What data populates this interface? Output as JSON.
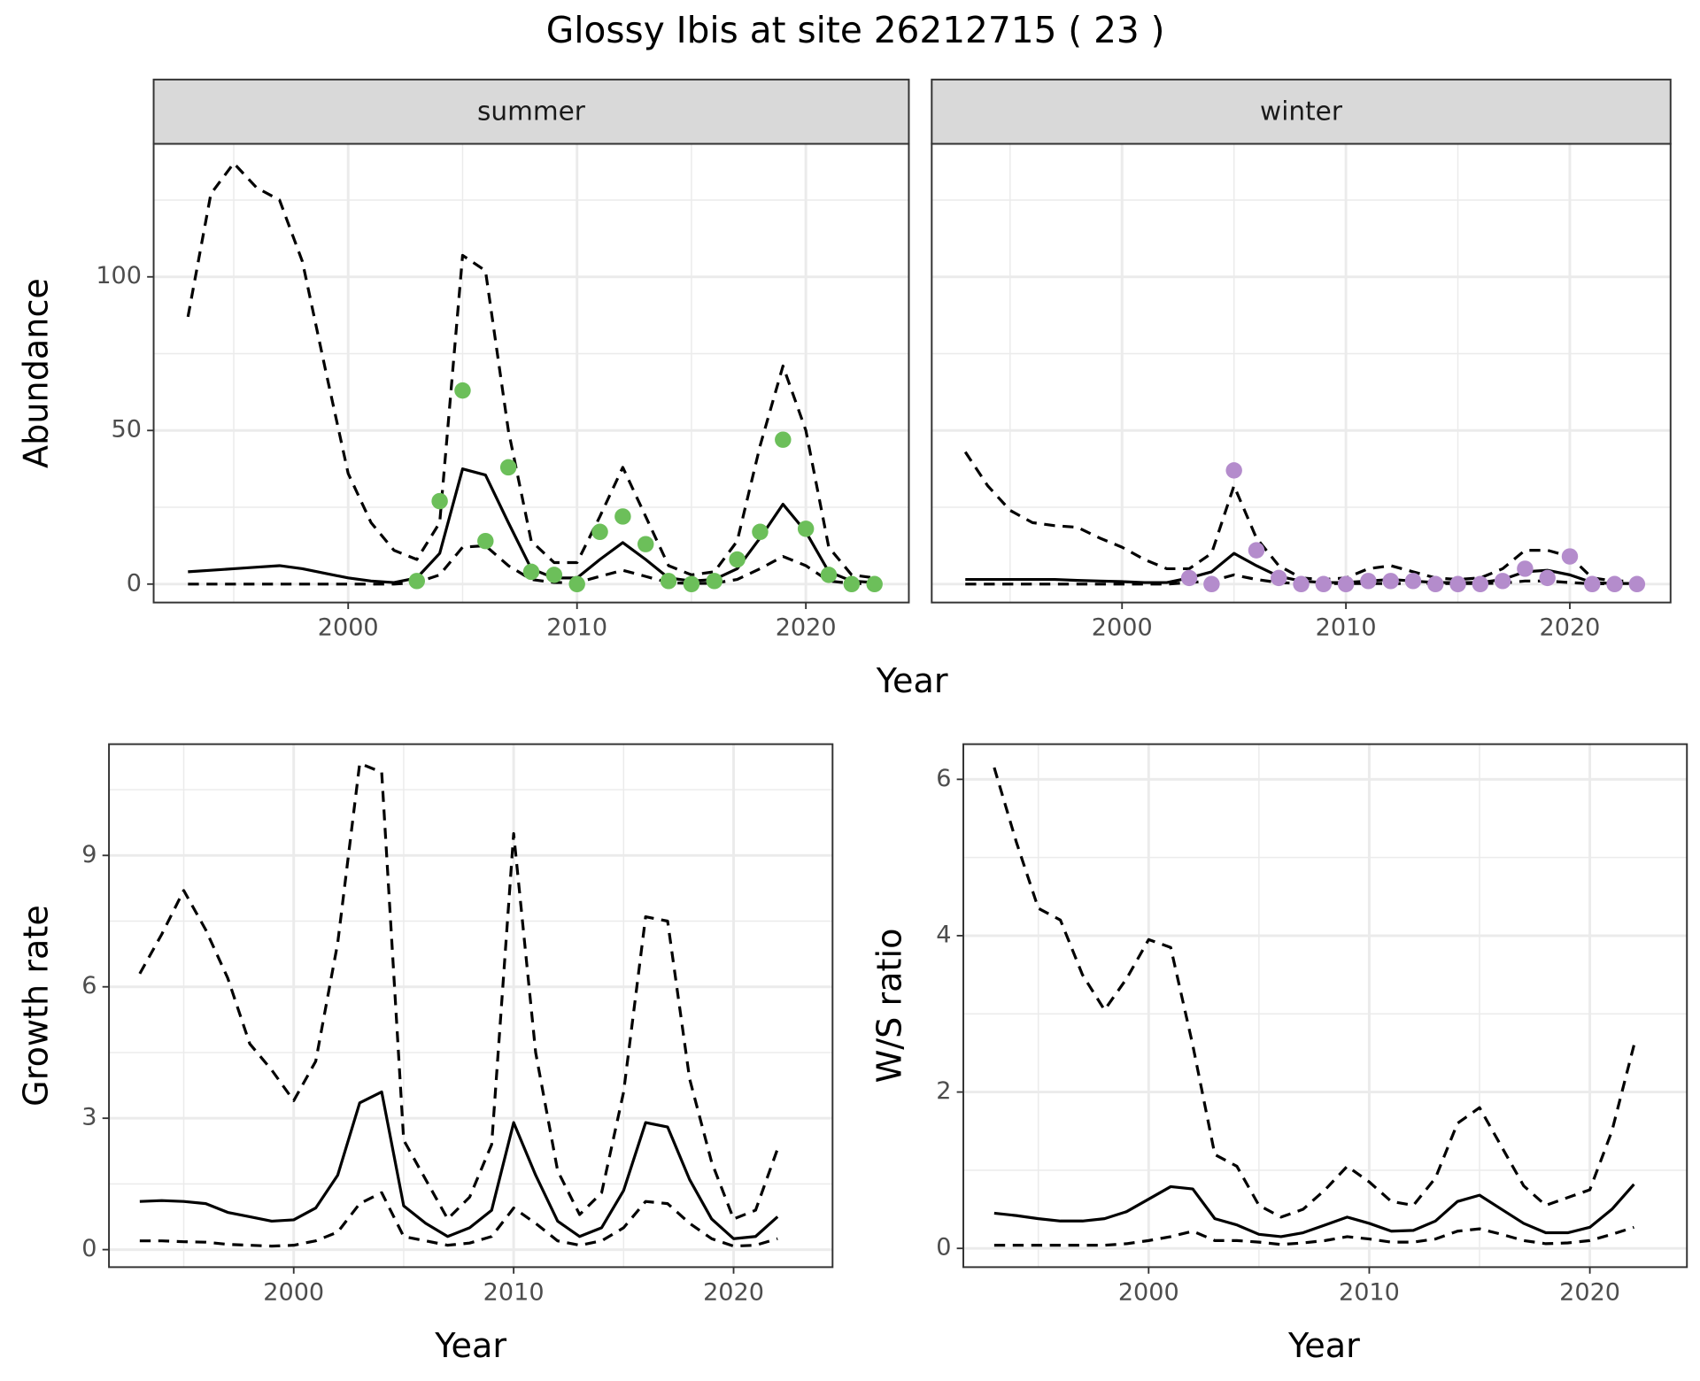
{
  "title": "Glossy Ibis at site 26212715 ( 23 )",
  "chart_data": [
    {
      "type": "line",
      "facet": "summer",
      "x_label": "Year",
      "y_label": "Abundance",
      "xlim": [
        1991.5,
        2024.5
      ],
      "xticks": [
        2000,
        2010,
        2020
      ],
      "xminor_ticks": [
        1995,
        2005,
        2015
      ],
      "ylim": [
        -6,
        143.3
      ],
      "yticks": [
        0,
        50,
        100
      ],
      "yminor_ticks": [
        25,
        75,
        125
      ],
      "ytick_labels": true,
      "grid": true,
      "x": [
        1993,
        1994,
        1995,
        1996,
        1997,
        1998,
        1999,
        2000,
        2001,
        2002,
        2003,
        2004,
        2005,
        2006,
        2007,
        2008,
        2009,
        2010,
        2011,
        2012,
        2013,
        2014,
        2015,
        2016,
        2017,
        2018,
        2019,
        2020,
        2021,
        2022,
        2023
      ],
      "series": [
        {
          "mode": "line",
          "dashed": false,
          "color": "#000000",
          "values": [
            4,
            4.5,
            5,
            5.5,
            6,
            5,
            3.5,
            2,
            1,
            0.5,
            2,
            10,
            37.5,
            35.5,
            20,
            5,
            2,
            2,
            8,
            13.5,
            8,
            2,
            1,
            1.5,
            5,
            15,
            26,
            17,
            4,
            1,
            0.5
          ]
        },
        {
          "mode": "line",
          "dashed": true,
          "color": "#000000",
          "values": [
            87,
            127,
            137,
            129,
            125,
            105,
            70,
            36,
            20,
            11,
            8,
            20,
            107,
            102,
            50,
            14,
            7,
            7,
            22,
            38,
            22,
            6,
            3,
            4,
            14,
            45,
            71,
            50,
            12,
            3,
            2
          ]
        },
        {
          "mode": "line",
          "dashed": true,
          "color": "#000000",
          "values": [
            0,
            0,
            0,
            0,
            0,
            0,
            0,
            0,
            0,
            0,
            0.5,
            3,
            12,
            12.5,
            6,
            1.5,
            0.5,
            0.5,
            2.5,
            4.5,
            2.5,
            0.5,
            0.2,
            0.3,
            1.5,
            5,
            9,
            6,
            1,
            0.2,
            0.1
          ]
        },
        {
          "mode": "points",
          "color": "#6cbf5a",
          "x": [
            2003,
            2004,
            2005,
            2006,
            2007,
            2008,
            2009,
            2010,
            2011,
            2012,
            2013,
            2014,
            2015,
            2016,
            2017,
            2018,
            2019,
            2020,
            2021,
            2022,
            2023
          ],
          "values": [
            1,
            27,
            63,
            14,
            38,
            4,
            3,
            0,
            17,
            22,
            13,
            1,
            0,
            1,
            8,
            17,
            47,
            18,
            3,
            0,
            0
          ]
        }
      ]
    },
    {
      "type": "line",
      "facet": "winter",
      "xlim": [
        1991.5,
        2024.5
      ],
      "xticks": [
        2000,
        2010,
        2020
      ],
      "xminor_ticks": [
        1995,
        2005,
        2015
      ],
      "ylim": [
        -6,
        143.3
      ],
      "yticks": [
        0,
        50,
        100
      ],
      "yminor_ticks": [
        25,
        75,
        125
      ],
      "ytick_labels": false,
      "grid": true,
      "x": [
        1993,
        1994,
        1995,
        1996,
        1997,
        1998,
        1999,
        2000,
        2001,
        2002,
        2003,
        2004,
        2005,
        2006,
        2007,
        2008,
        2009,
        2010,
        2011,
        2012,
        2013,
        2014,
        2015,
        2016,
        2017,
        2018,
        2019,
        2020,
        2021,
        2022,
        2023
      ],
      "series": [
        {
          "mode": "line",
          "dashed": false,
          "color": "#000000",
          "values": [
            1.5,
            1.5,
            1.5,
            1.5,
            1.5,
            1.2,
            1,
            0.8,
            0.5,
            0.5,
            2,
            4,
            10,
            6,
            2.5,
            1,
            0.5,
            0.5,
            1,
            1.5,
            1,
            0.5,
            0.5,
            0.5,
            1.5,
            4,
            4.5,
            3,
            0.5,
            0.2,
            0.2
          ]
        },
        {
          "mode": "line",
          "dashed": true,
          "color": "#000000",
          "values": [
            43,
            32,
            24,
            20,
            19,
            18.5,
            15,
            12,
            8,
            5,
            5,
            10,
            32,
            15,
            6,
            2,
            1.5,
            2,
            5,
            6,
            4,
            2,
            1.5,
            2,
            5,
            11,
            11,
            9,
            2,
            1,
            1
          ]
        },
        {
          "mode": "line",
          "dashed": true,
          "color": "#000000",
          "values": [
            0,
            0,
            0,
            0,
            0,
            0,
            0,
            0,
            0,
            0,
            0.5,
            1,
            3,
            1.5,
            0.5,
            0.2,
            0.2,
            0.2,
            0.2,
            0.2,
            0.2,
            0.2,
            0.2,
            0.2,
            0.3,
            1,
            1,
            0.5,
            0.1,
            0.1,
            0.1
          ]
        },
        {
          "mode": "points",
          "color": "#b48ccc",
          "x": [
            2003,
            2004,
            2005,
            2006,
            2007,
            2008,
            2009,
            2010,
            2011,
            2012,
            2013,
            2014,
            2015,
            2016,
            2017,
            2018,
            2019,
            2020,
            2021,
            2022,
            2023
          ],
          "values": [
            2,
            0,
            37,
            11,
            2,
            0,
            0,
            0,
            1,
            1,
            1,
            0,
            0,
            0,
            1,
            5,
            2,
            9,
            0,
            0,
            0
          ]
        }
      ]
    },
    {
      "type": "line",
      "x_label": "Year",
      "y_label": "Growth rate",
      "xlim": [
        1991.6,
        2024.5
      ],
      "xticks": [
        2000,
        2010,
        2020
      ],
      "xminor_ticks": [
        1995,
        2005,
        2015
      ],
      "ylim": [
        -0.4,
        11.54
      ],
      "yticks": [
        0,
        3,
        6,
        9
      ],
      "yminor_ticks": [
        1.5,
        4.5,
        7.5,
        10.5
      ],
      "ytick_labels": true,
      "grid": true,
      "x": [
        1993,
        1994,
        1995,
        1996,
        1997,
        1998,
        1999,
        2000,
        2001,
        2002,
        2003,
        2004,
        2005,
        2006,
        2007,
        2008,
        2009,
        2010,
        2011,
        2012,
        2013,
        2014,
        2015,
        2016,
        2017,
        2018,
        2019,
        2020,
        2021,
        2022
      ],
      "series": [
        {
          "mode": "line",
          "dashed": false,
          "color": "#000000",
          "values": [
            1.1,
            1.12,
            1.1,
            1.05,
            0.85,
            0.75,
            0.65,
            0.68,
            0.95,
            1.7,
            3.35,
            3.6,
            1.0,
            0.6,
            0.3,
            0.5,
            0.9,
            2.9,
            1.7,
            0.65,
            0.3,
            0.5,
            1.35,
            2.9,
            2.8,
            1.6,
            0.7,
            0.25,
            0.3,
            0.75
          ]
        },
        {
          "mode": "line",
          "dashed": true,
          "color": "#000000",
          "values": [
            6.3,
            7.2,
            8.2,
            7.3,
            6.2,
            4.7,
            4.1,
            3.4,
            4.3,
            7.0,
            11.1,
            10.9,
            2.5,
            1.6,
            0.7,
            1.2,
            2.4,
            9.5,
            4.5,
            1.8,
            0.8,
            1.3,
            3.6,
            7.6,
            7.5,
            3.9,
            2.0,
            0.7,
            0.9,
            2.3
          ]
        },
        {
          "mode": "line",
          "dashed": true,
          "color": "#000000",
          "values": [
            0.2,
            0.2,
            0.18,
            0.17,
            0.12,
            0.1,
            0.08,
            0.1,
            0.2,
            0.4,
            1.05,
            1.3,
            0.3,
            0.2,
            0.1,
            0.15,
            0.3,
            0.95,
            0.6,
            0.2,
            0.1,
            0.2,
            0.5,
            1.1,
            1.05,
            0.6,
            0.25,
            0.08,
            0.1,
            0.25
          ]
        }
      ]
    },
    {
      "type": "line",
      "x_label": "Year",
      "y_label": "W/S ratio",
      "xlim": [
        1991.6,
        2024.4
      ],
      "xticks": [
        2000,
        2010,
        2020
      ],
      "xminor_ticks": [
        1995,
        2005,
        2015
      ],
      "ylim": [
        -0.24,
        6.45
      ],
      "yticks": [
        0,
        2,
        4,
        6
      ],
      "yminor_ticks": [
        1,
        3,
        5
      ],
      "ytick_labels": true,
      "grid": true,
      "x": [
        1993,
        1994,
        1995,
        1996,
        1997,
        1998,
        1999,
        2000,
        2001,
        2002,
        2003,
        2004,
        2005,
        2006,
        2007,
        2008,
        2009,
        2010,
        2011,
        2012,
        2013,
        2014,
        2015,
        2016,
        2017,
        2018,
        2019,
        2020,
        2021,
        2022
      ],
      "series": [
        {
          "mode": "line",
          "dashed": false,
          "color": "#000000",
          "values": [
            0.45,
            0.42,
            0.38,
            0.35,
            0.35,
            0.38,
            0.47,
            0.63,
            0.79,
            0.76,
            0.38,
            0.3,
            0.18,
            0.15,
            0.2,
            0.3,
            0.4,
            0.32,
            0.22,
            0.23,
            0.35,
            0.6,
            0.68,
            0.5,
            0.32,
            0.2,
            0.2,
            0.27,
            0.5,
            0.82
          ]
        },
        {
          "mode": "line",
          "dashed": true,
          "color": "#000000",
          "values": [
            6.15,
            5.2,
            4.35,
            4.2,
            3.5,
            3.05,
            3.45,
            3.95,
            3.85,
            2.6,
            1.2,
            1.05,
            0.55,
            0.4,
            0.5,
            0.75,
            1.05,
            0.85,
            0.6,
            0.55,
            0.9,
            1.6,
            1.8,
            1.3,
            0.8,
            0.55,
            0.65,
            0.75,
            1.5,
            2.6
          ]
        },
        {
          "mode": "line",
          "dashed": true,
          "color": "#000000",
          "values": [
            0.04,
            0.04,
            0.04,
            0.04,
            0.04,
            0.04,
            0.06,
            0.1,
            0.15,
            0.22,
            0.1,
            0.1,
            0.08,
            0.05,
            0.07,
            0.1,
            0.15,
            0.12,
            0.08,
            0.08,
            0.12,
            0.22,
            0.25,
            0.18,
            0.1,
            0.06,
            0.07,
            0.1,
            0.18,
            0.27
          ]
        }
      ]
    }
  ]
}
